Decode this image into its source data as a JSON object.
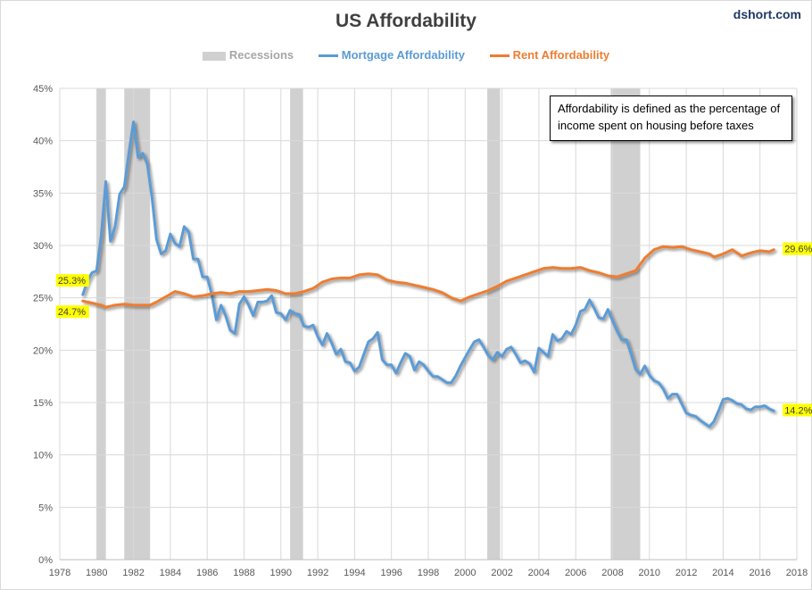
{
  "header": {
    "title": "US Affordability",
    "brand": "dshort.com"
  },
  "annotation": {
    "text": "Affordability is defined as the percentage of income spent on housing before taxes"
  },
  "colors": {
    "mortgage": "#5b9bd5",
    "rent": "#ed7d31",
    "recession": "#d0d0d0",
    "label_bg": "#ffff00",
    "grid": "#d9d9d9",
    "axis_text": "#595959"
  },
  "chart_data": {
    "type": "line",
    "title": "US Affordability",
    "xlabel": "",
    "ylabel": "",
    "xlim": [
      1978,
      2018
    ],
    "ylim": [
      0,
      45
    ],
    "x_ticks": [
      1978,
      1980,
      1982,
      1984,
      1986,
      1988,
      1990,
      1992,
      1994,
      1996,
      1998,
      2000,
      2002,
      2004,
      2006,
      2008,
      2010,
      2012,
      2014,
      2016,
      2018
    ],
    "y_ticks": [
      0,
      5,
      10,
      15,
      20,
      25,
      30,
      35,
      40,
      45
    ],
    "y_tick_format": "percent",
    "grid": true,
    "legend": {
      "placement": "top",
      "entries": [
        "Recessions",
        "Mortgage Affordability",
        "Rent Affordability"
      ]
    },
    "recessions": [
      [
        1980.0,
        1980.5
      ],
      [
        1981.5,
        1982.9
      ],
      [
        1990.5,
        1991.2
      ],
      [
        2001.2,
        2001.9
      ],
      [
        2007.9,
        2009.5
      ]
    ],
    "series": [
      {
        "name": "Mortgage Affordability",
        "end_labels": {
          "start": "25.3%",
          "end": "14.2%"
        },
        "points": [
          [
            1979.25,
            25.3
          ],
          [
            1979.5,
            26.6
          ],
          [
            1979.75,
            27.4
          ],
          [
            1980.0,
            27.6
          ],
          [
            1980.25,
            31.0
          ],
          [
            1980.5,
            36.1
          ],
          [
            1980.75,
            30.4
          ],
          [
            1981.0,
            31.8
          ],
          [
            1981.25,
            34.9
          ],
          [
            1981.5,
            35.6
          ],
          [
            1981.75,
            38.8
          ],
          [
            1982.0,
            41.8
          ],
          [
            1982.25,
            38.4
          ],
          [
            1982.5,
            38.8
          ],
          [
            1982.75,
            37.8
          ],
          [
            1983.0,
            34.6
          ],
          [
            1983.25,
            30.6
          ],
          [
            1983.5,
            29.2
          ],
          [
            1983.75,
            29.5
          ],
          [
            1984.0,
            31.1
          ],
          [
            1984.25,
            30.2
          ],
          [
            1984.5,
            29.9
          ],
          [
            1984.75,
            31.8
          ],
          [
            1985.0,
            31.3
          ],
          [
            1985.25,
            28.7
          ],
          [
            1985.5,
            28.7
          ],
          [
            1985.75,
            27.0
          ],
          [
            1986.0,
            27.0
          ],
          [
            1986.25,
            25.3
          ],
          [
            1986.5,
            22.9
          ],
          [
            1986.75,
            24.3
          ],
          [
            1987.0,
            23.3
          ],
          [
            1987.25,
            21.9
          ],
          [
            1987.5,
            21.6
          ],
          [
            1987.75,
            24.4
          ],
          [
            1988.0,
            25.1
          ],
          [
            1988.25,
            24.3
          ],
          [
            1988.5,
            23.3
          ],
          [
            1988.75,
            24.6
          ],
          [
            1989.0,
            24.6
          ],
          [
            1989.25,
            24.7
          ],
          [
            1989.5,
            25.2
          ],
          [
            1989.75,
            23.6
          ],
          [
            1990.0,
            23.5
          ],
          [
            1990.25,
            22.9
          ],
          [
            1990.5,
            23.8
          ],
          [
            1990.75,
            23.5
          ],
          [
            1991.0,
            23.4
          ],
          [
            1991.25,
            22.3
          ],
          [
            1991.5,
            22.2
          ],
          [
            1991.75,
            22.4
          ],
          [
            1992.0,
            21.3
          ],
          [
            1992.25,
            20.5
          ],
          [
            1992.5,
            21.6
          ],
          [
            1992.75,
            20.7
          ],
          [
            1993.0,
            19.6
          ],
          [
            1993.25,
            20.1
          ],
          [
            1993.5,
            18.9
          ],
          [
            1993.75,
            18.8
          ],
          [
            1994.0,
            18.0
          ],
          [
            1994.25,
            18.4
          ],
          [
            1994.5,
            19.6
          ],
          [
            1994.75,
            20.8
          ],
          [
            1995.0,
            21.1
          ],
          [
            1995.25,
            21.7
          ],
          [
            1995.5,
            19.1
          ],
          [
            1995.75,
            18.6
          ],
          [
            1996.0,
            18.6
          ],
          [
            1996.25,
            17.8
          ],
          [
            1996.5,
            18.8
          ],
          [
            1996.75,
            19.7
          ],
          [
            1997.0,
            19.4
          ],
          [
            1997.25,
            18.1
          ],
          [
            1997.5,
            18.9
          ],
          [
            1997.75,
            18.6
          ],
          [
            1998.0,
            18.0
          ],
          [
            1998.25,
            17.5
          ],
          [
            1998.5,
            17.5
          ],
          [
            1998.75,
            17.2
          ],
          [
            1999.0,
            16.9
          ],
          [
            1999.25,
            16.9
          ],
          [
            1999.5,
            17.6
          ],
          [
            1999.75,
            18.5
          ],
          [
            2000.0,
            19.3
          ],
          [
            2000.25,
            20.1
          ],
          [
            2000.5,
            20.8
          ],
          [
            2000.75,
            21.0
          ],
          [
            2001.0,
            20.3
          ],
          [
            2001.25,
            19.5
          ],
          [
            2001.5,
            19.1
          ],
          [
            2001.75,
            19.8
          ],
          [
            2002.0,
            19.4
          ],
          [
            2002.25,
            20.1
          ],
          [
            2002.5,
            20.3
          ],
          [
            2002.75,
            19.6
          ],
          [
            2003.0,
            18.8
          ],
          [
            2003.25,
            19.0
          ],
          [
            2003.5,
            18.7
          ],
          [
            2003.75,
            17.9
          ],
          [
            2004.0,
            20.2
          ],
          [
            2004.25,
            19.8
          ],
          [
            2004.5,
            19.4
          ],
          [
            2004.75,
            21.5
          ],
          [
            2005.0,
            20.9
          ],
          [
            2005.25,
            21.1
          ],
          [
            2005.5,
            21.8
          ],
          [
            2005.75,
            21.5
          ],
          [
            2006.0,
            22.4
          ],
          [
            2006.25,
            23.7
          ],
          [
            2006.5,
            23.9
          ],
          [
            2006.75,
            24.8
          ],
          [
            2007.0,
            24.0
          ],
          [
            2007.25,
            23.1
          ],
          [
            2007.5,
            23.0
          ],
          [
            2007.75,
            23.9
          ],
          [
            2008.0,
            22.8
          ],
          [
            2008.25,
            21.8
          ],
          [
            2008.5,
            21.0
          ],
          [
            2008.75,
            21.0
          ],
          [
            2009.0,
            19.7
          ],
          [
            2009.25,
            18.2
          ],
          [
            2009.5,
            17.7
          ],
          [
            2009.75,
            18.5
          ],
          [
            2010.0,
            17.6
          ],
          [
            2010.25,
            17.1
          ],
          [
            2010.5,
            16.9
          ],
          [
            2010.75,
            16.3
          ],
          [
            2011.0,
            15.4
          ],
          [
            2011.25,
            15.8
          ],
          [
            2011.5,
            15.8
          ],
          [
            2011.75,
            14.9
          ],
          [
            2012.0,
            14.0
          ],
          [
            2012.25,
            13.8
          ],
          [
            2012.5,
            13.7
          ],
          [
            2012.75,
            13.3
          ],
          [
            2013.0,
            13.0
          ],
          [
            2013.25,
            12.7
          ],
          [
            2013.5,
            13.2
          ],
          [
            2013.75,
            14.2
          ],
          [
            2014.0,
            15.3
          ],
          [
            2014.25,
            15.4
          ],
          [
            2014.5,
            15.2
          ],
          [
            2014.75,
            14.9
          ],
          [
            2015.0,
            14.8
          ],
          [
            2015.25,
            14.4
          ],
          [
            2015.5,
            14.3
          ],
          [
            2015.75,
            14.6
          ],
          [
            2016.0,
            14.6
          ],
          [
            2016.25,
            14.7
          ],
          [
            2016.5,
            14.4
          ],
          [
            2016.75,
            14.2
          ]
        ]
      },
      {
        "name": "Rent Affordability",
        "end_labels": {
          "start": "24.7%",
          "end": "29.6%"
        },
        "points": [
          [
            1979.25,
            24.7
          ],
          [
            1979.75,
            24.5
          ],
          [
            1980.25,
            24.3
          ],
          [
            1980.5,
            24.1
          ],
          [
            1981.0,
            24.3
          ],
          [
            1981.5,
            24.4
          ],
          [
            1982.0,
            24.3
          ],
          [
            1982.5,
            24.3
          ],
          [
            1982.9,
            24.3
          ],
          [
            1983.25,
            24.6
          ],
          [
            1983.75,
            25.1
          ],
          [
            1984.25,
            25.6
          ],
          [
            1984.75,
            25.4
          ],
          [
            1985.25,
            25.1
          ],
          [
            1985.75,
            25.2
          ],
          [
            1986.25,
            25.4
          ],
          [
            1986.75,
            25.5
          ],
          [
            1987.25,
            25.4
          ],
          [
            1987.75,
            25.6
          ],
          [
            1988.25,
            25.6
          ],
          [
            1988.75,
            25.7
          ],
          [
            1989.25,
            25.8
          ],
          [
            1989.75,
            25.7
          ],
          [
            1990.25,
            25.4
          ],
          [
            1990.75,
            25.4
          ],
          [
            1991.25,
            25.6
          ],
          [
            1991.75,
            25.9
          ],
          [
            1992.25,
            26.5
          ],
          [
            1992.75,
            26.8
          ],
          [
            1993.25,
            26.9
          ],
          [
            1993.75,
            26.9
          ],
          [
            1994.25,
            27.2
          ],
          [
            1994.75,
            27.3
          ],
          [
            1995.25,
            27.2
          ],
          [
            1995.75,
            26.7
          ],
          [
            1996.25,
            26.5
          ],
          [
            1996.75,
            26.4
          ],
          [
            1997.25,
            26.2
          ],
          [
            1997.75,
            26.0
          ],
          [
            1998.25,
            25.8
          ],
          [
            1998.75,
            25.5
          ],
          [
            1999.25,
            25.0
          ],
          [
            1999.75,
            24.7
          ],
          [
            2000.25,
            25.1
          ],
          [
            2000.75,
            25.4
          ],
          [
            2001.25,
            25.7
          ],
          [
            2001.75,
            26.1
          ],
          [
            2002.25,
            26.6
          ],
          [
            2002.75,
            26.9
          ],
          [
            2003.25,
            27.2
          ],
          [
            2003.75,
            27.5
          ],
          [
            2004.25,
            27.8
          ],
          [
            2004.75,
            27.9
          ],
          [
            2005.25,
            27.8
          ],
          [
            2005.75,
            27.8
          ],
          [
            2006.25,
            27.9
          ],
          [
            2006.75,
            27.6
          ],
          [
            2007.25,
            27.4
          ],
          [
            2007.75,
            27.1
          ],
          [
            2008.25,
            27.0
          ],
          [
            2008.75,
            27.3
          ],
          [
            2009.25,
            27.6
          ],
          [
            2009.75,
            28.8
          ],
          [
            2010.25,
            29.6
          ],
          [
            2010.75,
            29.9
          ],
          [
            2011.25,
            29.8
          ],
          [
            2011.75,
            29.9
          ],
          [
            2012.25,
            29.6
          ],
          [
            2012.75,
            29.4
          ],
          [
            2013.25,
            29.2
          ],
          [
            2013.5,
            28.9
          ],
          [
            2014.0,
            29.2
          ],
          [
            2014.5,
            29.6
          ],
          [
            2015.0,
            29.0
          ],
          [
            2015.5,
            29.3
          ],
          [
            2016.0,
            29.5
          ],
          [
            2016.5,
            29.4
          ],
          [
            2016.75,
            29.6
          ]
        ]
      }
    ]
  }
}
